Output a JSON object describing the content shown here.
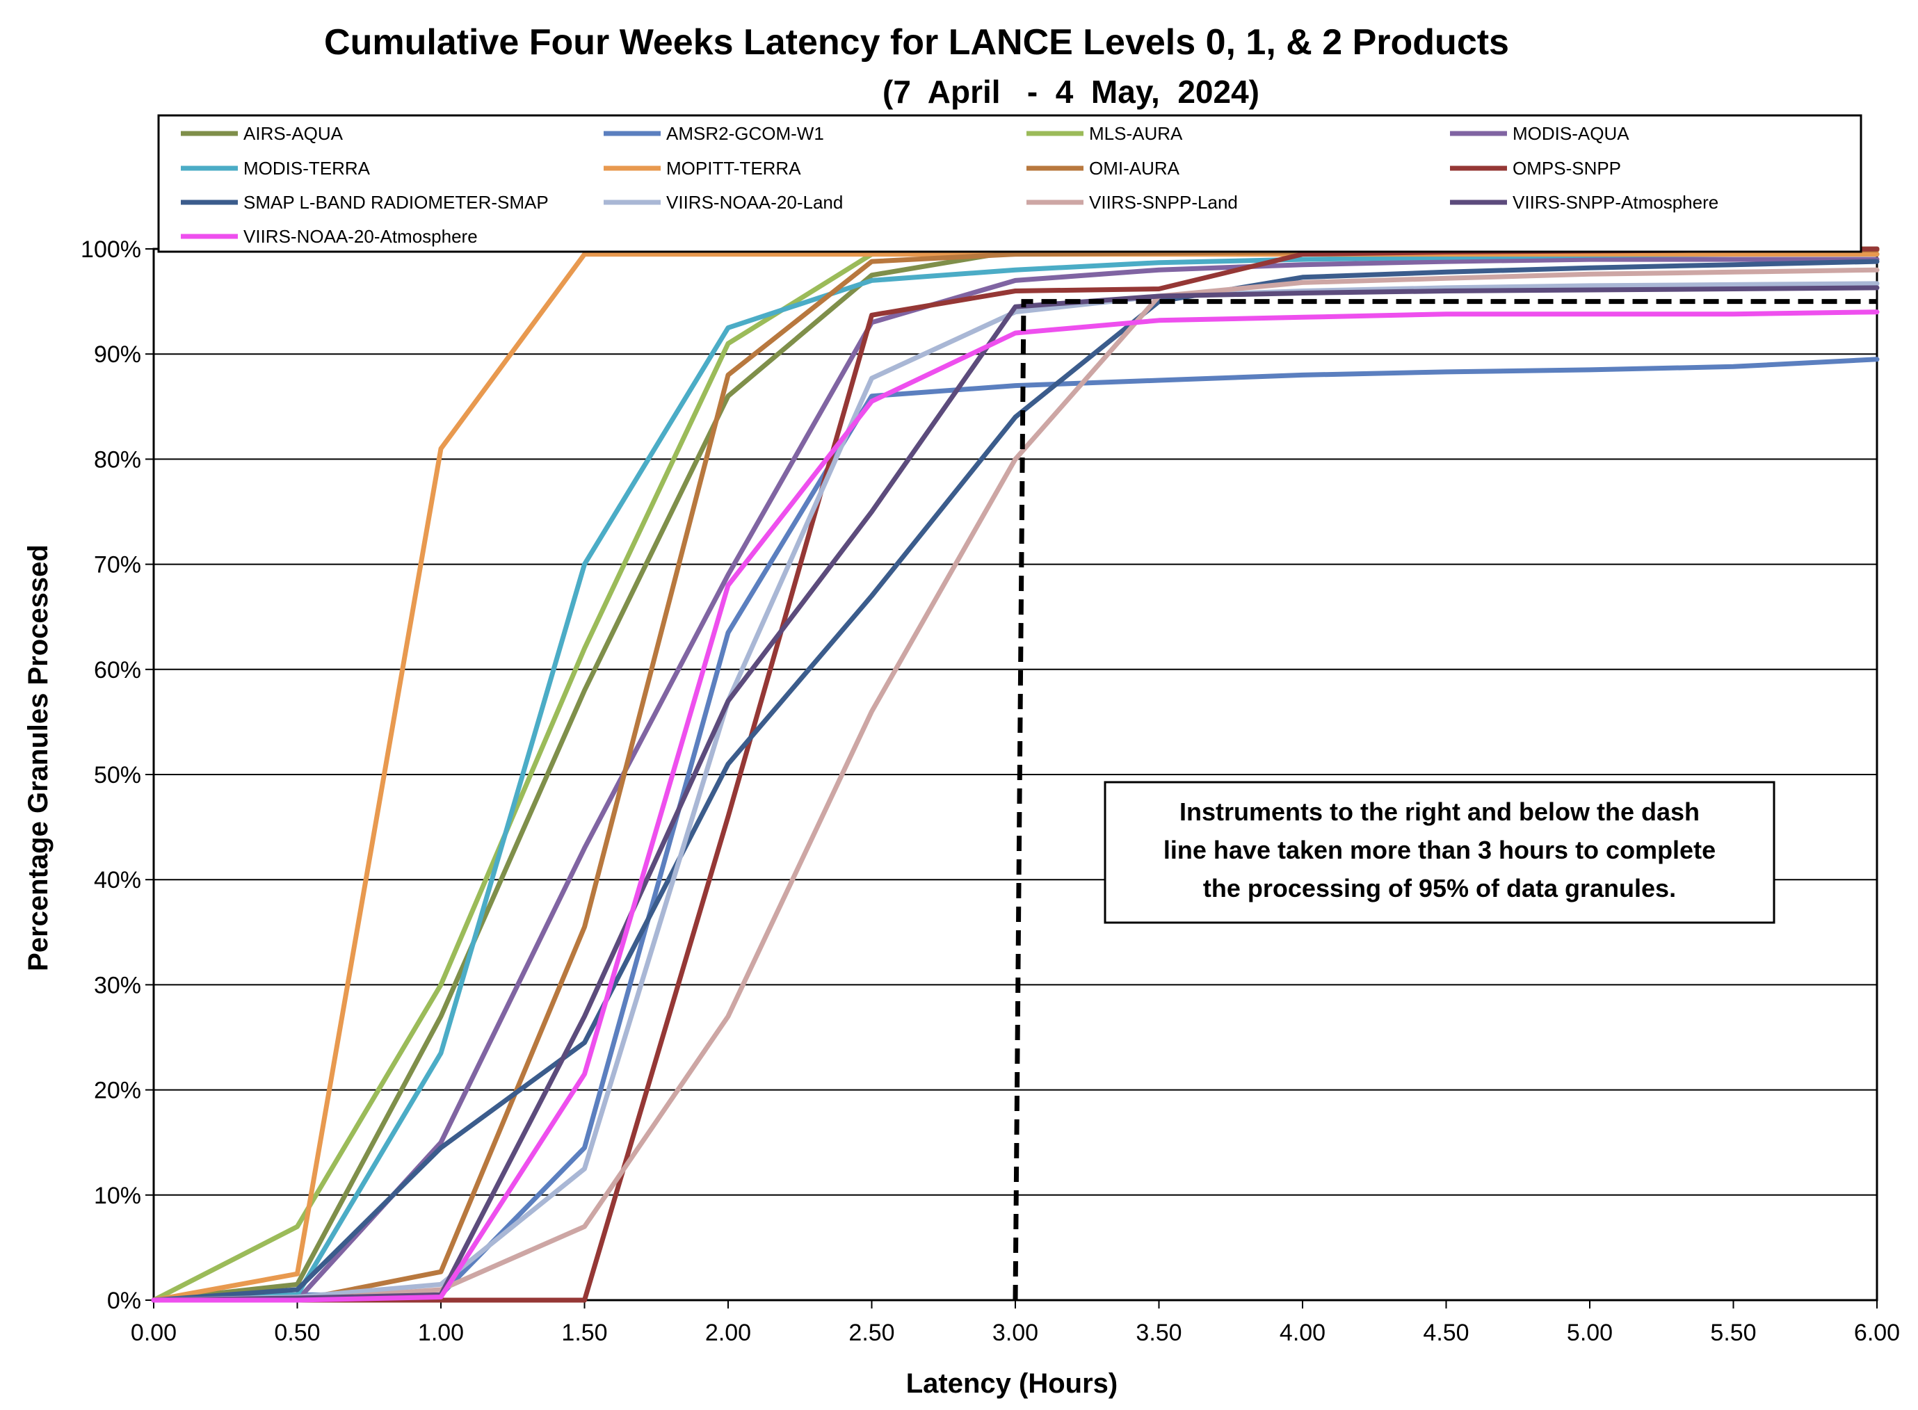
{
  "chart_data": {
    "type": "line",
    "title": "Cumulative Four Weeks Latency  for LANCE Levels 0, 1, & 2 Products",
    "subtitle": "(7  April   -  4  May,  2024)",
    "xlabel": "Latency (Hours)",
    "ylabel": "Percentage Granules Processed",
    "xlim": [
      0,
      6
    ],
    "ylim": [
      0,
      100
    ],
    "x_ticks": [
      "0.00",
      "0.50",
      "1.00",
      "1.50",
      "2.00",
      "2.50",
      "3.00",
      "3.50",
      "4.00",
      "4.50",
      "5.00",
      "5.50",
      "6.00"
    ],
    "y_ticks": [
      "0%",
      "10%",
      "20%",
      "30%",
      "40%",
      "50%",
      "60%",
      "70%",
      "80%",
      "90%",
      "100%"
    ],
    "grid": "horizontal",
    "legend_position": "top",
    "x": [
      0,
      0.5,
      1.0,
      1.5,
      2.0,
      2.5,
      3.0,
      3.5,
      4.0,
      4.5,
      5.0,
      5.5,
      6.0
    ],
    "series": [
      {
        "name": "AIRS-AQUA",
        "color": "#7F8F4A",
        "values": [
          0,
          1.5,
          27,
          58,
          86,
          97.5,
          99.8,
          100,
          100,
          100,
          100,
          100,
          100
        ]
      },
      {
        "name": "AMSR2-GCOM-W1",
        "color": "#5B7FBF",
        "values": [
          0,
          0.5,
          0.5,
          14.5,
          63.5,
          86,
          87,
          87.5,
          88,
          88.3,
          88.5,
          88.8,
          89.5
        ]
      },
      {
        "name": "MLS-AURA",
        "color": "#9BBB59",
        "values": [
          0,
          7,
          30,
          62,
          91,
          99.5,
          100,
          100,
          100,
          100,
          100,
          100,
          100
        ]
      },
      {
        "name": "MODIS-AQUA",
        "color": "#8064A2",
        "values": [
          0,
          0,
          15,
          43,
          69,
          93,
          97,
          98,
          98.5,
          98.8,
          99,
          99,
          99
        ]
      },
      {
        "name": "MODIS-TERRA",
        "color": "#4BACC6",
        "values": [
          0,
          0.5,
          23.5,
          70,
          92.5,
          97,
          98,
          98.7,
          99,
          99.2,
          99.4,
          99.5,
          99.5
        ]
      },
      {
        "name": "MOPITT-TERRA",
        "color": "#E8994F",
        "values": [
          0,
          2.5,
          81,
          99.5,
          99.5,
          99.5,
          99.5,
          99.5,
          99.5,
          99.5,
          99.5,
          99.5,
          99.5
        ]
      },
      {
        "name": "OMI-AURA",
        "color": "#B8783E",
        "values": [
          0,
          0,
          2.7,
          35.5,
          88,
          98.8,
          99.5,
          99.6,
          99.7,
          99.8,
          99.8,
          99.9,
          99.9
        ]
      },
      {
        "name": "OMPS-SNPP",
        "color": "#953735",
        "values": [
          0,
          0,
          0,
          0,
          46,
          93.7,
          96,
          96.2,
          99.5,
          99.7,
          99.8,
          99.9,
          100
        ]
      },
      {
        "name": "SMAP L-BAND RADIOMETER-SMAP",
        "color": "#3B5C8C",
        "values": [
          0,
          1,
          14.5,
          24.5,
          51,
          67,
          84,
          95,
          97.3,
          97.8,
          98.2,
          98.5,
          98.8
        ]
      },
      {
        "name": "VIIRS-NOAA-20-Land",
        "color": "#A9B7D5",
        "values": [
          0,
          0.3,
          1.5,
          12.5,
          57,
          87.7,
          94,
          95.5,
          96,
          96.3,
          96.5,
          96.6,
          96.7
        ]
      },
      {
        "name": "VIIRS-SNPP-Land",
        "color": "#CDA6A4",
        "values": [
          0,
          0,
          1,
          7,
          27,
          56,
          80,
          95.5,
          96.8,
          97.2,
          97.6,
          97.8,
          98
        ]
      },
      {
        "name": "VIIRS-SNPP-Atmosphere",
        "color": "#5C4B7C",
        "values": [
          0,
          0.2,
          0.5,
          27,
          57,
          75,
          94.5,
          95.5,
          95.8,
          96,
          96.1,
          96.2,
          96.3
        ]
      },
      {
        "name": "VIIRS-NOAA-20-Atmosphere",
        "color": "#EE4FEE",
        "values": [
          0,
          0,
          0.3,
          21.5,
          68,
          85.5,
          92,
          93.2,
          93.5,
          93.8,
          93.8,
          93.8,
          94
        ]
      }
    ],
    "threshold": {
      "x": 3.0,
      "y": 95,
      "style": "dashed",
      "color": "#000000"
    },
    "annotation": "Instruments to the right and below the dash line have taken more than 3 hours to complete the processing of 95% of data granules.",
    "annotation_lines": [
      "Instruments to the right and below the dash",
      "line have taken more than 3 hours to complete",
      "the processing of 95% of data granules."
    ]
  }
}
